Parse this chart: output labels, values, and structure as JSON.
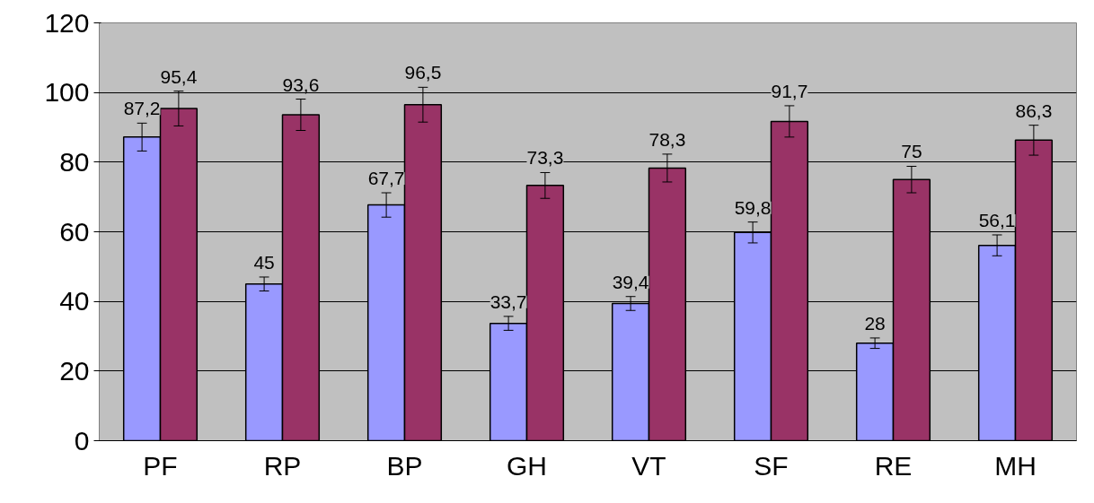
{
  "chart_data": {
    "type": "bar",
    "categories": [
      "PF",
      "RP",
      "BP",
      "GH",
      "VT",
      "SF",
      "RE",
      "MH"
    ],
    "series": [
      {
        "color": "#9999ff",
        "values": [
          87.2,
          45,
          67.7,
          33.7,
          39.4,
          59.8,
          28,
          56.1
        ],
        "errors": [
          4,
          2,
          3.5,
          2,
          2,
          3,
          1.5,
          3
        ],
        "value_labels": [
          "87,2",
          "45",
          "67,7",
          "33,7",
          "39,4",
          "59,8",
          "28",
          "56,1"
        ]
      },
      {
        "color": "#993366",
        "values": [
          95.4,
          93.6,
          96.5,
          73.3,
          78.3,
          91.7,
          75,
          86.3
        ],
        "errors": [
          5,
          4.5,
          5,
          3.7,
          4,
          4.5,
          3.8,
          4.3
        ],
        "value_labels": [
          "95,4",
          "93,6",
          "96,5",
          "73,3",
          "78,3",
          "91,7",
          "75",
          "86,3"
        ]
      }
    ],
    "ylim": [
      0,
      120
    ],
    "yticks": [
      0,
      20,
      40,
      60,
      80,
      100,
      120
    ],
    "grid": "y"
  }
}
